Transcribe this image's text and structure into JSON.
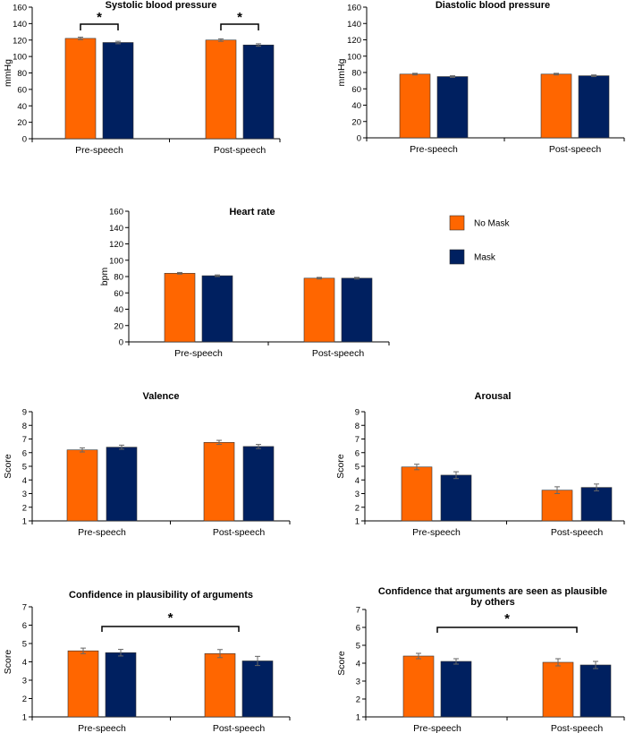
{
  "colors": {
    "no_mask": "#ff6600",
    "mask": "#002060",
    "bar_stroke": "#333333",
    "axis": "#000000"
  },
  "legend": {
    "items": [
      {
        "label": "No Mask",
        "color": "#ff6600"
      },
      {
        "label": "Mask",
        "color": "#002060"
      }
    ]
  },
  "chart_data": [
    {
      "id": "systolic",
      "type": "bar",
      "title": "Systolic blood pressure",
      "ylabel": "mmHg",
      "ylim": [
        0,
        160
      ],
      "yticks": [
        0,
        20,
        40,
        60,
        80,
        100,
        120,
        140,
        160
      ],
      "categories": [
        "Pre-speech",
        "Post-speech"
      ],
      "series": [
        {
          "name": "No Mask",
          "values": [
            122,
            120
          ],
          "errors": [
            1.5,
            1.5
          ]
        },
        {
          "name": "Mask",
          "values": [
            117,
            114
          ],
          "errors": [
            1.5,
            1.5
          ]
        }
      ],
      "significance": [
        {
          "type": "within",
          "category": 0,
          "label": "*"
        },
        {
          "type": "within",
          "category": 1,
          "label": "*"
        }
      ]
    },
    {
      "id": "diastolic",
      "type": "bar",
      "title": "Diastolic blood pressure",
      "ylabel": "mmHg",
      "ylim": [
        0,
        160
      ],
      "yticks": [
        0,
        20,
        40,
        60,
        80,
        100,
        120,
        140,
        160
      ],
      "categories": [
        "Pre-speech",
        "Post-speech"
      ],
      "series": [
        {
          "name": "No Mask",
          "values": [
            78,
            78
          ],
          "errors": [
            1,
            1
          ]
        },
        {
          "name": "Mask",
          "values": [
            75,
            76
          ],
          "errors": [
            1,
            1
          ]
        }
      ],
      "significance": []
    },
    {
      "id": "heart_rate",
      "type": "bar",
      "title": "Heart rate",
      "ylabel": "bpm",
      "ylim": [
        0,
        160
      ],
      "yticks": [
        0,
        20,
        40,
        60,
        80,
        100,
        120,
        140,
        160
      ],
      "categories": [
        "Pre-speech",
        "Post-speech"
      ],
      "series": [
        {
          "name": "No Mask",
          "values": [
            84,
            78
          ],
          "errors": [
            1,
            1
          ]
        },
        {
          "name": "Mask",
          "values": [
            81,
            78
          ],
          "errors": [
            1,
            1
          ]
        }
      ],
      "significance": []
    },
    {
      "id": "valence",
      "type": "bar",
      "title": "Valence",
      "ylabel": "Score",
      "ylim": [
        1,
        9
      ],
      "yticks": [
        1,
        2,
        3,
        4,
        5,
        6,
        7,
        8,
        9
      ],
      "categories": [
        "Pre-speech",
        "Post-speech"
      ],
      "series": [
        {
          "name": "No Mask",
          "values": [
            6.2,
            6.75
          ],
          "errors": [
            0.15,
            0.15
          ]
        },
        {
          "name": "Mask",
          "values": [
            6.4,
            6.45
          ],
          "errors": [
            0.15,
            0.15
          ]
        }
      ],
      "significance": []
    },
    {
      "id": "arousal",
      "type": "bar",
      "title": "Arousal",
      "ylabel": "Score",
      "ylim": [
        1,
        9
      ],
      "yticks": [
        1,
        2,
        3,
        4,
        5,
        6,
        7,
        8,
        9
      ],
      "categories": [
        "Pre-speech",
        "Post-speech"
      ],
      "series": [
        {
          "name": "No Mask",
          "values": [
            4.95,
            3.25
          ],
          "errors": [
            0.2,
            0.25
          ]
        },
        {
          "name": "Mask",
          "values": [
            4.35,
            3.45
          ],
          "errors": [
            0.25,
            0.25
          ]
        }
      ],
      "significance": []
    },
    {
      "id": "confidence_plausibility",
      "type": "bar",
      "title": "Confidence in plausibility of arguments",
      "ylabel": "Score",
      "ylim": [
        1,
        7
      ],
      "yticks": [
        1,
        2,
        3,
        4,
        5,
        6,
        7
      ],
      "categories": [
        "Pre-speech",
        "Post-speech"
      ],
      "series": [
        {
          "name": "No Mask",
          "values": [
            4.6,
            4.45
          ],
          "errors": [
            0.15,
            0.22
          ]
        },
        {
          "name": "Mask",
          "values": [
            4.5,
            4.05
          ],
          "errors": [
            0.18,
            0.25
          ]
        }
      ],
      "significance": [
        {
          "type": "between",
          "label": "*"
        }
      ]
    },
    {
      "id": "confidence_others",
      "type": "bar",
      "title": "Confidence that arguments are seen as plausible by others",
      "ylabel": "Score",
      "ylim": [
        1,
        7
      ],
      "yticks": [
        1,
        2,
        3,
        4,
        5,
        6,
        7
      ],
      "categories": [
        "Pre-speech",
        "Post-speech"
      ],
      "series": [
        {
          "name": "No Mask",
          "values": [
            4.4,
            4.05
          ],
          "errors": [
            0.15,
            0.2
          ]
        },
        {
          "name": "Mask",
          "values": [
            4.1,
            3.9
          ],
          "errors": [
            0.15,
            0.2
          ]
        }
      ],
      "significance": [
        {
          "type": "between",
          "label": "*"
        }
      ]
    }
  ]
}
